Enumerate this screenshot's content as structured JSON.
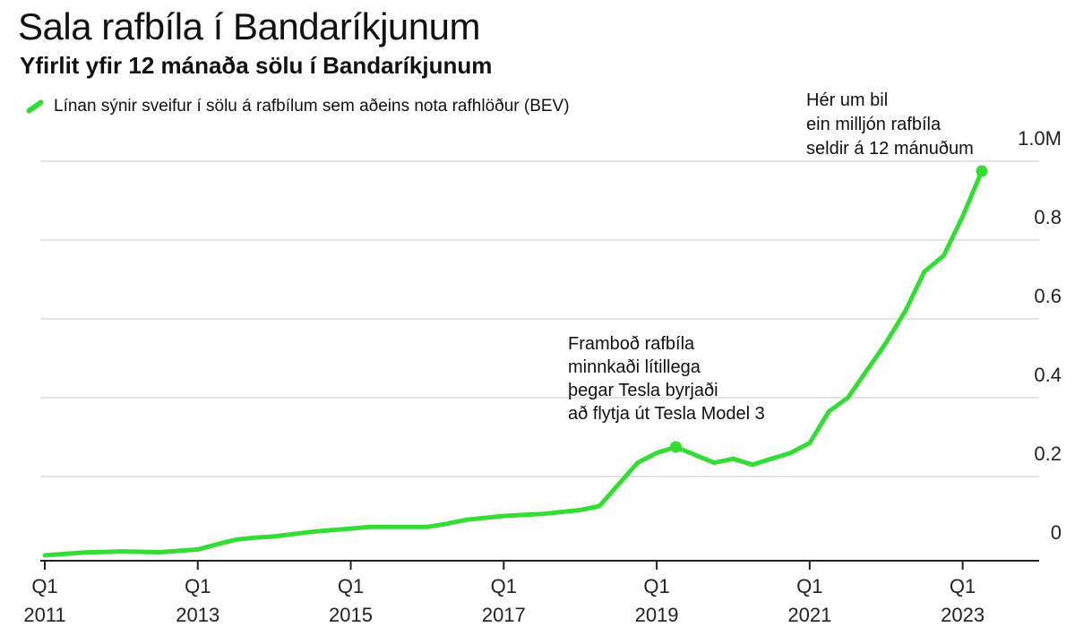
{
  "chart_data": {
    "type": "line",
    "title": "Sala rafbíla í Bandaríkjunum",
    "subtitle": "Yfirlit yfir 12 mánaða sölu í Bandaríkjunum",
    "legend": "Línan sýnir sveifur í sölu á rafbílum sem aðeins nota rafhlöður (BEV)",
    "xlabel": "",
    "ylabel": "",
    "ylim": [
      0,
      1.0
    ],
    "y_ticks": [
      "0",
      "0.2",
      "0.4",
      "0.6",
      "0.8",
      "1.0M"
    ],
    "x_ticks": [
      {
        "q": "Q1",
        "year": "2011"
      },
      {
        "q": "Q1",
        "year": "2013"
      },
      {
        "q": "Q1",
        "year": "2015"
      },
      {
        "q": "Q1",
        "year": "2017"
      },
      {
        "q": "Q1",
        "year": "2019"
      },
      {
        "q": "Q1",
        "year": "2021"
      },
      {
        "q": "Q1",
        "year": "2023"
      }
    ],
    "xlim": [
      2011.0,
      2024.0
    ],
    "grid": true,
    "line_color": "#33dd33",
    "series": [
      {
        "x": [
          2011.0,
          2011.5,
          2012.0,
          2012.5,
          2013.0,
          2013.25,
          2013.5,
          2013.75,
          2014.0,
          2014.5,
          2015.0,
          2015.25,
          2015.5,
          2016.0,
          2016.25,
          2016.5,
          2017.0,
          2017.5,
          2018.0,
          2018.25,
          2018.5,
          2018.75,
          2019.0,
          2019.25,
          2019.5,
          2019.75,
          2020.0,
          2020.25,
          2020.5,
          2020.75,
          2021.0,
          2021.25,
          2021.5,
          2021.75,
          2022.0,
          2022.25,
          2022.5,
          2022.75,
          2023.0,
          2023.25
        ],
        "y": [
          0.0,
          0.007,
          0.01,
          0.008,
          0.015,
          0.028,
          0.04,
          0.045,
          0.048,
          0.06,
          0.068,
          0.072,
          0.072,
          0.072,
          0.08,
          0.09,
          0.1,
          0.105,
          0.115,
          0.125,
          0.18,
          0.235,
          0.26,
          0.275,
          0.255,
          0.235,
          0.245,
          0.23,
          0.245,
          0.26,
          0.285,
          0.365,
          0.4,
          0.47,
          0.54,
          0.62,
          0.72,
          0.76,
          0.86,
          0.975
        ]
      }
    ],
    "markers": [
      {
        "x": 2019.25,
        "y": 0.275
      },
      {
        "x": 2023.25,
        "y": 0.975
      }
    ],
    "annotations": [
      {
        "id": "tesla",
        "lines": [
          "Framboð rafbíla",
          "minnkaði lítillega",
          "þegar Tesla byrjaði",
          "að flytja út Tesla Model 3"
        ]
      },
      {
        "id": "million",
        "lines": [
          "Hér um bil",
          "ein milljón rafbíla",
          "seldir á 12 mánuðum"
        ]
      }
    ]
  }
}
